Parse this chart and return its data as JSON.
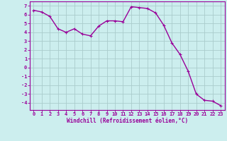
{
  "x": [
    0,
    1,
    2,
    3,
    4,
    5,
    6,
    7,
    8,
    9,
    10,
    11,
    12,
    13,
    14,
    15,
    16,
    17,
    18,
    19,
    20,
    21,
    22,
    23
  ],
  "y": [
    6.5,
    6.3,
    5.8,
    4.4,
    4.0,
    4.4,
    3.8,
    3.6,
    4.7,
    5.3,
    5.3,
    5.2,
    6.9,
    6.8,
    6.7,
    6.2,
    4.8,
    2.8,
    1.5,
    -0.4,
    -3.0,
    -3.7,
    -3.8,
    -4.3
  ],
  "line_color": "#990099",
  "marker": "+",
  "marker_size": 3,
  "bg_color": "#cceeee",
  "grid_color": "#aacccc",
  "xlabel": "Windchill (Refroidissement éolien,°C)",
  "xlabel_color": "#990099",
  "tick_color": "#990099",
  "ylim": [
    -4.8,
    7.5
  ],
  "xlim": [
    -0.5,
    23.5
  ],
  "yticks": [
    -4,
    -3,
    -2,
    -1,
    0,
    1,
    2,
    3,
    4,
    5,
    6,
    7
  ],
  "xticks": [
    0,
    1,
    2,
    3,
    4,
    5,
    6,
    7,
    8,
    9,
    10,
    11,
    12,
    13,
    14,
    15,
    16,
    17,
    18,
    19,
    20,
    21,
    22,
    23
  ],
  "line_width": 1.0,
  "tick_fontsize": 5.0,
  "xlabel_fontsize": 5.5,
  "ylabel_fontsize": 5.0
}
